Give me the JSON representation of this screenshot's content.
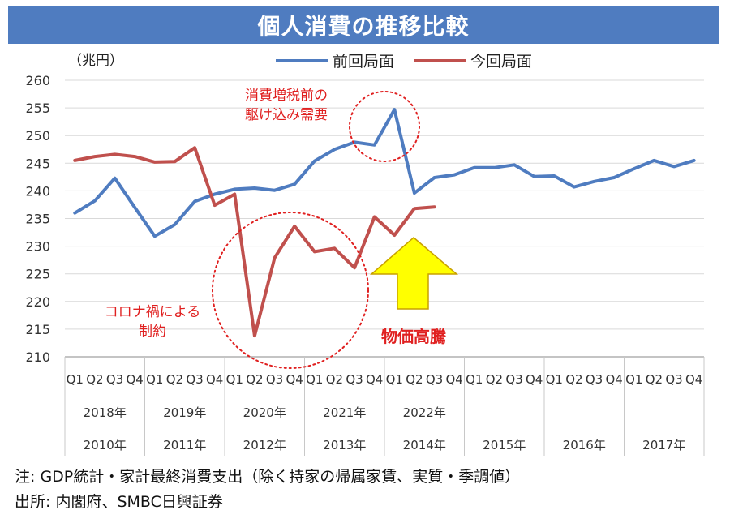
{
  "chart_data": {
    "type": "line",
    "title": "個人消費の推移比較",
    "ylabel": "（兆円）",
    "ylim": [
      210,
      260
    ],
    "yticks": [
      210,
      215,
      220,
      225,
      230,
      235,
      240,
      245,
      250,
      255,
      260
    ],
    "quarter_labels": [
      "Q1",
      "Q2",
      "Q3",
      "Q4",
      "Q1",
      "Q2",
      "Q3",
      "Q4",
      "Q1",
      "Q2",
      "Q3",
      "Q4",
      "Q1",
      "Q2",
      "Q3",
      "Q4",
      "Q1",
      "Q2",
      "Q3",
      "Q4",
      "Q1",
      "Q2",
      "Q3",
      "Q4",
      "Q1",
      "Q2",
      "Q3",
      "Q4",
      "Q1",
      "Q2",
      "Q3",
      "Q4"
    ],
    "year_row_current": [
      "2018年",
      "2019年",
      "2020年",
      "2021年",
      "2022年"
    ],
    "year_row_previous": [
      "2010年",
      "2011年",
      "2012年",
      "2013年",
      "2014年",
      "2015年",
      "2016年",
      "2017年"
    ],
    "series": [
      {
        "name": "前回局面",
        "color": "#4f7cc0",
        "values": [
          236.0,
          238.2,
          242.3,
          237.0,
          231.8,
          233.9,
          238.1,
          239.4,
          240.3,
          240.5,
          240.1,
          241.2,
          245.4,
          247.5,
          248.8,
          248.3,
          254.7,
          239.6,
          242.4,
          242.9,
          244.2,
          244.2,
          244.7,
          242.6,
          242.7,
          240.7,
          241.7,
          242.4,
          244.0,
          245.5,
          244.4,
          245.5
        ]
      },
      {
        "name": "今回局面",
        "color": "#c0504d",
        "values": [
          245.5,
          246.2,
          246.6,
          246.2,
          245.2,
          245.3,
          247.8,
          237.4,
          239.4,
          213.8,
          227.9,
          233.6,
          229.0,
          229.6,
          226.1,
          235.3,
          232.0,
          236.8,
          237.1
        ]
      }
    ],
    "annotations": [
      {
        "text_lines": [
          "消費増税前の",
          "駆け込み需要"
        ],
        "color": "#e02020"
      },
      {
        "text_lines": [
          "コロナ禍による",
          "制約"
        ],
        "color": "#e02020"
      },
      {
        "text_lines": [
          "物価高騰"
        ],
        "color": "#e02020",
        "arrow_color": "#ffff00"
      }
    ]
  },
  "notes": {
    "line1": "注: GDP統計・家計最終消費支出（除く持家の帰属家賃、実質・季調値）",
    "line2": "出所: 内閣府、SMBC日興証券"
  }
}
